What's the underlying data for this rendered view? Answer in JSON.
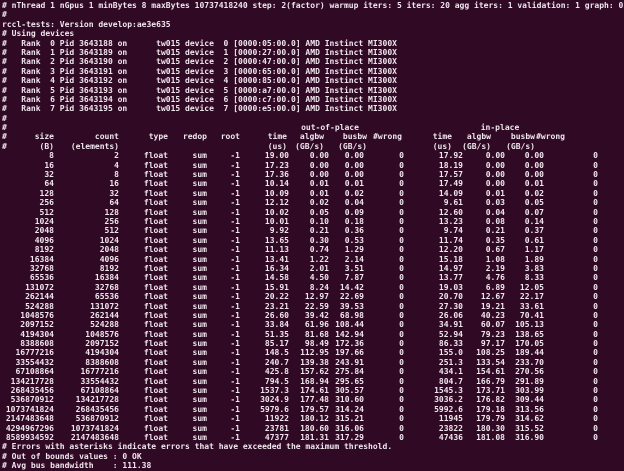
{
  "colors": {
    "background": "#300a24",
    "foreground": "#f0e7ee"
  },
  "terminal": {
    "config_line": "# nThread 1 nGpus 1 minBytes 8 maxBytes 10737418240 step: 2(factor) warmup iters: 5 iters: 20 agg iters: 1 validation: 1 graph: 0",
    "comment_line": "#",
    "version_line": "rccl-tests: Version develop:ae3e635",
    "using_devices_line": "# Using devices",
    "devices": [
      {
        "rank": 0,
        "pid": "3643188",
        "host": "tw015",
        "device": 0,
        "busid": "0000:05:00.0",
        "gpu": "AMD Instinct MI300X"
      },
      {
        "rank": 1,
        "pid": "3643189",
        "host": "tw015",
        "device": 1,
        "busid": "0000:27:00.0",
        "gpu": "AMD Instinct MI300X"
      },
      {
        "rank": 2,
        "pid": "3643190",
        "host": "tw015",
        "device": 2,
        "busid": "0000:47:00.0",
        "gpu": "AMD Instinct MI300X"
      },
      {
        "rank": 3,
        "pid": "3643191",
        "host": "tw015",
        "device": 3,
        "busid": "0000:65:00.0",
        "gpu": "AMD Instinct MI300X"
      },
      {
        "rank": 4,
        "pid": "3643192",
        "host": "tw015",
        "device": 4,
        "busid": "0000:85:00.0",
        "gpu": "AMD Instinct MI300X"
      },
      {
        "rank": 5,
        "pid": "3643193",
        "host": "tw015",
        "device": 5,
        "busid": "0000:a7:00.0",
        "gpu": "AMD Instinct MI300X"
      },
      {
        "rank": 6,
        "pid": "3643194",
        "host": "tw015",
        "device": 6,
        "busid": "0000:c7:00.0",
        "gpu": "AMD Instinct MI300X"
      },
      {
        "rank": 7,
        "pid": "3643195",
        "host": "tw015",
        "device": 7,
        "busid": "0000:e5:00.0",
        "gpu": "AMD Instinct MI300X"
      }
    ],
    "table": {
      "section_headers": {
        "out_of_place": "out-of-place",
        "in_place": "in-place"
      },
      "column_headers": [
        "size",
        "count",
        "type",
        "redop",
        "root",
        "time",
        "algbw",
        "busbw",
        "#wrong",
        "time",
        "algbw",
        "busbw",
        "#wrong"
      ],
      "unit_headers": [
        "(B)",
        "(elements)",
        "",
        "",
        "",
        "(us)",
        "(GB/s)",
        "(GB/s)",
        "",
        "(us)",
        "(GB/s)",
        "(GB/s)",
        ""
      ],
      "rows": [
        [
          "8",
          "2",
          "float",
          "sum",
          "-1",
          "19.00",
          "0.00",
          "0.00",
          "0",
          "17.92",
          "0.00",
          "0.00",
          "0"
        ],
        [
          "16",
          "4",
          "float",
          "sum",
          "-1",
          "17.23",
          "0.00",
          "0.00",
          "0",
          "18.19",
          "0.00",
          "0.00",
          "0"
        ],
        [
          "32",
          "8",
          "float",
          "sum",
          "-1",
          "17.36",
          "0.00",
          "0.00",
          "0",
          "17.57",
          "0.00",
          "0.00",
          "0"
        ],
        [
          "64",
          "16",
          "float",
          "sum",
          "-1",
          "10.14",
          "0.01",
          "0.01",
          "0",
          "17.49",
          "0.00",
          "0.01",
          "0"
        ],
        [
          "128",
          "32",
          "float",
          "sum",
          "-1",
          "10.09",
          "0.01",
          "0.02",
          "0",
          "14.09",
          "0.01",
          "0.02",
          "0"
        ],
        [
          "256",
          "64",
          "float",
          "sum",
          "-1",
          "12.12",
          "0.02",
          "0.04",
          "0",
          "9.61",
          "0.03",
          "0.05",
          "0"
        ],
        [
          "512",
          "128",
          "float",
          "sum",
          "-1",
          "10.02",
          "0.05",
          "0.09",
          "0",
          "12.60",
          "0.04",
          "0.07",
          "0"
        ],
        [
          "1024",
          "256",
          "float",
          "sum",
          "-1",
          "10.01",
          "0.10",
          "0.18",
          "0",
          "13.23",
          "0.08",
          "0.14",
          "0"
        ],
        [
          "2048",
          "512",
          "float",
          "sum",
          "-1",
          "9.92",
          "0.21",
          "0.36",
          "0",
          "9.74",
          "0.21",
          "0.37",
          "0"
        ],
        [
          "4096",
          "1024",
          "float",
          "sum",
          "-1",
          "13.65",
          "0.30",
          "0.53",
          "0",
          "11.74",
          "0.35",
          "0.61",
          "0"
        ],
        [
          "8192",
          "2048",
          "float",
          "sum",
          "-1",
          "11.13",
          "0.74",
          "1.29",
          "0",
          "12.20",
          "0.67",
          "1.17",
          "0"
        ],
        [
          "16384",
          "4096",
          "float",
          "sum",
          "-1",
          "13.41",
          "1.22",
          "2.14",
          "0",
          "15.18",
          "1.08",
          "1.89",
          "0"
        ],
        [
          "32768",
          "8192",
          "float",
          "sum",
          "-1",
          "16.34",
          "2.01",
          "3.51",
          "0",
          "14.97",
          "2.19",
          "3.83",
          "0"
        ],
        [
          "65536",
          "16384",
          "float",
          "sum",
          "-1",
          "14.58",
          "4.50",
          "7.87",
          "0",
          "13.77",
          "4.76",
          "8.33",
          "0"
        ],
        [
          "131072",
          "32768",
          "float",
          "sum",
          "-1",
          "15.91",
          "8.24",
          "14.42",
          "0",
          "19.03",
          "6.89",
          "12.05",
          "0"
        ],
        [
          "262144",
          "65536",
          "float",
          "sum",
          "-1",
          "20.22",
          "12.97",
          "22.69",
          "0",
          "20.70",
          "12.67",
          "22.17",
          "0"
        ],
        [
          "524288",
          "131072",
          "float",
          "sum",
          "-1",
          "23.21",
          "22.59",
          "39.53",
          "0",
          "27.30",
          "19.21",
          "33.61",
          "0"
        ],
        [
          "1048576",
          "262144",
          "float",
          "sum",
          "-1",
          "26.60",
          "39.42",
          "68.98",
          "0",
          "26.06",
          "40.23",
          "70.41",
          "0"
        ],
        [
          "2097152",
          "524288",
          "float",
          "sum",
          "-1",
          "33.84",
          "61.96",
          "108.44",
          "0",
          "34.91",
          "60.07",
          "105.13",
          "0"
        ],
        [
          "4194304",
          "1048576",
          "float",
          "sum",
          "-1",
          "51.35",
          "81.68",
          "142.94",
          "0",
          "52.94",
          "79.23",
          "138.65",
          "0"
        ],
        [
          "8388608",
          "2097152",
          "float",
          "sum",
          "-1",
          "85.17",
          "98.49",
          "172.36",
          "0",
          "86.33",
          "97.17",
          "170.05",
          "0"
        ],
        [
          "16777216",
          "4194304",
          "float",
          "sum",
          "-1",
          "148.5",
          "112.95",
          "197.66",
          "0",
          "155.0",
          "108.25",
          "189.44",
          "0"
        ],
        [
          "33554432",
          "8388608",
          "float",
          "sum",
          "-1",
          "240.7",
          "139.38",
          "243.91",
          "0",
          "251.3",
          "133.54",
          "233.70",
          "0"
        ],
        [
          "67108864",
          "16777216",
          "float",
          "sum",
          "-1",
          "425.8",
          "157.62",
          "275.84",
          "0",
          "434.1",
          "154.61",
          "270.56",
          "0"
        ],
        [
          "134217728",
          "33554432",
          "float",
          "sum",
          "-1",
          "794.5",
          "168.94",
          "295.65",
          "0",
          "804.7",
          "166.79",
          "291.89",
          "0"
        ],
        [
          "268435456",
          "67108864",
          "float",
          "sum",
          "-1",
          "1537.3",
          "174.61",
          "305.57",
          "0",
          "1545.3",
          "173.71",
          "303.99",
          "0"
        ],
        [
          "536870912",
          "134217728",
          "float",
          "sum",
          "-1",
          "3024.9",
          "177.48",
          "310.60",
          "0",
          "3036.2",
          "176.82",
          "309.44",
          "0"
        ],
        [
          "1073741824",
          "268435456",
          "float",
          "sum",
          "-1",
          "5979.6",
          "179.57",
          "314.24",
          "0",
          "5992.6",
          "179.18",
          "313.56",
          "0"
        ],
        [
          "2147483648",
          "536870912",
          "float",
          "sum",
          "-1",
          "11922",
          "180.12",
          "315.21",
          "0",
          "11945",
          "179.79",
          "314.62",
          "0"
        ],
        [
          "4294967296",
          "1073741824",
          "float",
          "sum",
          "-1",
          "23781",
          "180.60",
          "316.06",
          "0",
          "23822",
          "180.30",
          "315.52",
          "0"
        ],
        [
          "8589934592",
          "2147483648",
          "float",
          "sum",
          "-1",
          "47377",
          "181.31",
          "317.29",
          "0",
          "47436",
          "181.08",
          "316.90",
          "0"
        ]
      ]
    },
    "footer_lines": [
      "# Errors with asterisks indicate errors that have exceeded the maximum threshold.",
      "# Out of bounds values : 0 OK",
      "# Avg bus bandwidth    : 111.38"
    ]
  }
}
